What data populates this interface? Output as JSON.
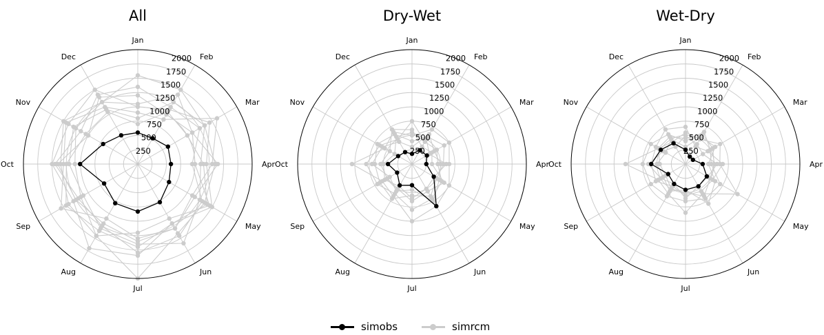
{
  "chart_data": [
    {
      "type": "radar",
      "title": "All",
      "categories": [
        "Jan",
        "Feb",
        "Mar",
        "Apr",
        "May",
        "Jun",
        "Jul",
        "Aug",
        "Sep",
        "Oct",
        "Nov",
        "Dec"
      ],
      "radial_ticks": [
        250,
        500,
        750,
        1000,
        1250,
        1500,
        1750,
        2000
      ],
      "ylim": [
        0,
        2000
      ],
      "grid": true,
      "series": [
        {
          "name": "simobs",
          "color": "#000000",
          "values": [
            550,
            520,
            610,
            580,
            630,
            770,
            830,
            790,
            680,
            1010,
            700,
            580
          ]
        },
        {
          "name": "simrcm",
          "color": "#cccccc",
          "values": [
            1550,
            1500,
            1350,
            1350,
            1350,
            1400,
            2000,
            1450,
            1400,
            1350,
            1500,
            1250
          ]
        },
        {
          "name": "simrcm",
          "color": "#cccccc",
          "values": [
            1000,
            1100,
            1450,
            1200,
            1500,
            1200,
            1600,
            1700,
            1300,
            1500,
            1400,
            1500
          ]
        },
        {
          "name": "simrcm",
          "color": "#cccccc",
          "values": [
            800,
            1250,
            1350,
            1100,
            1250,
            1600,
            1400,
            1300,
            1100,
            1200,
            1300,
            1100
          ]
        },
        {
          "name": "simrcm",
          "color": "#cccccc",
          "values": [
            1200,
            1000,
            1100,
            1400,
            1150,
            1300,
            1350,
            1200,
            1250,
            1400,
            1000,
            1350
          ]
        },
        {
          "name": "simrcm",
          "color": "#cccccc",
          "values": [
            1050,
            1400,
            1100,
            1000,
            1450,
            1100,
            1200,
            1450,
            1150,
            1100,
            1250,
            1250
          ]
        },
        {
          "name": "simrcm",
          "color": "#cccccc",
          "values": [
            900,
            900,
            1600,
            1300,
            1100,
            1300,
            1300,
            1100,
            1550,
            1300,
            1450,
            1150
          ]
        },
        {
          "name": "simrcm",
          "color": "#cccccc",
          "values": [
            1350,
            1150,
            1250,
            950,
            1300,
            1450,
            1550,
            1250,
            1200,
            1450,
            1150,
            1400
          ]
        },
        {
          "name": "simrcm",
          "color": "#cccccc",
          "values": [
            700,
            1050,
            1000,
            1150,
            1400,
            1200,
            1450,
            1350,
            1450,
            1250,
            1050,
            1050
          ]
        }
      ]
    },
    {
      "type": "radar",
      "title": "Dry-Wet",
      "categories": [
        "Jan",
        "Feb",
        "Mar",
        "Apr",
        "May",
        "Jun",
        "Jul",
        "Aug",
        "Sep",
        "Oct",
        "Nov",
        "Dec"
      ],
      "radial_ticks": [
        250,
        500,
        750,
        1000,
        1250,
        1500,
        1750,
        2000
      ],
      "ylim": [
        0,
        2000
      ],
      "grid": true,
      "series": [
        {
          "name": "simobs",
          "color": "#000000",
          "values": [
            180,
            280,
            300,
            250,
            440,
            850,
            370,
            430,
            300,
            420,
            280,
            240
          ]
        },
        {
          "name": "simrcm",
          "color": "#cccccc",
          "values": [
            500,
            700,
            750,
            650,
            750,
            850,
            1000,
            650,
            600,
            1050,
            550,
            650
          ]
        },
        {
          "name": "simrcm",
          "color": "#cccccc",
          "values": [
            750,
            450,
            500,
            450,
            600,
            700,
            800,
            600,
            700,
            800,
            650,
            500
          ]
        },
        {
          "name": "simrcm",
          "color": "#cccccc",
          "values": [
            400,
            550,
            650,
            550,
            500,
            650,
            550,
            700,
            650,
            650,
            700,
            600
          ]
        },
        {
          "name": "simrcm",
          "color": "#cccccc",
          "values": [
            600,
            350,
            400,
            350,
            650,
            550,
            650,
            500,
            500,
            550,
            450,
            700
          ]
        },
        {
          "name": "simrcm",
          "color": "#cccccc",
          "values": [
            300,
            600,
            450,
            500,
            550,
            750,
            450,
            550,
            450,
            700,
            600,
            450
          ]
        },
        {
          "name": "simrcm",
          "color": "#cccccc",
          "values": [
            550,
            500,
            350,
            600,
            450,
            500,
            600,
            450,
            550,
            500,
            350,
            550
          ]
        }
      ]
    },
    {
      "type": "radar",
      "title": "Wet-Dry",
      "categories": [
        "Jan",
        "Feb",
        "Mar",
        "Apr",
        "May",
        "Jun",
        "Jul",
        "Aug",
        "Sep",
        "Oct",
        "Nov",
        "Dec"
      ],
      "radial_ticks": [
        250,
        500,
        750,
        1000,
        1250,
        1500,
        1750,
        2000
      ],
      "ylim": [
        0,
        2000
      ],
      "grid": true,
      "series": [
        {
          "name": "simobs",
          "color": "#000000",
          "values": [
            250,
            150,
            150,
            300,
            430,
            450,
            450,
            400,
            350,
            600,
            500,
            420
          ]
        },
        {
          "name": "simrcm",
          "color": "#cccccc",
          "values": [
            550,
            500,
            700,
            600,
            1050,
            600,
            850,
            600,
            550,
            1050,
            550,
            450
          ]
        },
        {
          "name": "simrcm",
          "color": "#cccccc",
          "values": [
            400,
            650,
            500,
            450,
            700,
            700,
            650,
            650,
            700,
            750,
            700,
            600
          ]
        },
        {
          "name": "simrcm",
          "color": "#cccccc",
          "values": [
            650,
            350,
            450,
            650,
            550,
            550,
            550,
            450,
            600,
            600,
            600,
            700
          ]
        },
        {
          "name": "simrcm",
          "color": "#cccccc",
          "values": [
            300,
            550,
            600,
            400,
            600,
            800,
            450,
            550,
            450,
            500,
            400,
            500
          ]
        },
        {
          "name": "simrcm",
          "color": "#cccccc",
          "values": [
            500,
            400,
            350,
            550,
            450,
            450,
            600,
            400,
            500,
            650,
            450,
            350
          ]
        },
        {
          "name": "simrcm",
          "color": "#cccccc",
          "values": [
            450,
            600,
            550,
            500,
            500,
            650,
            500,
            500,
            400,
            450,
            550,
            550
          ]
        }
      ]
    }
  ],
  "legend": {
    "items": [
      {
        "label": "simobs",
        "color": "#000000"
      },
      {
        "label": "simrcm",
        "color": "#cccccc"
      }
    ]
  }
}
